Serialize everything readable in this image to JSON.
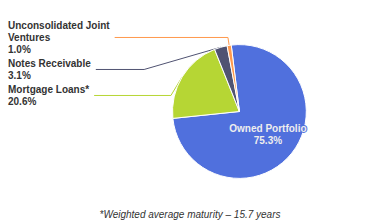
{
  "chart_data": {
    "type": "pie",
    "categories": [
      "Owned Portfolio",
      "Mortgage Loans*",
      "Notes Receivable",
      "Unconsolidated Joint\nVentures"
    ],
    "values": [
      75.3,
      20.6,
      3.1,
      1.0
    ],
    "value_labels": [
      "75.3%",
      "20.6%",
      "3.1%",
      "1.0%"
    ],
    "data_labels": true,
    "annotations": [
      "*Weighted average maturity – 15.7 years"
    ]
  }
}
